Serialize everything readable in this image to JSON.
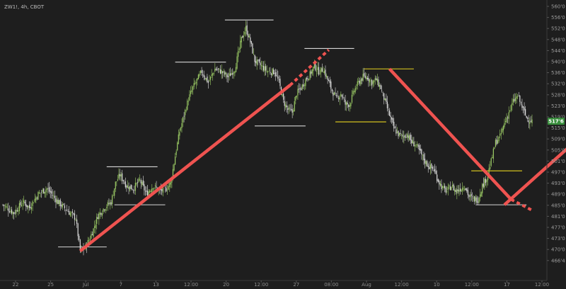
{
  "header": {
    "title": "ZW1!, 4h, CBOT"
  },
  "colors": {
    "background": "#1e1e1e",
    "candle_up": "#9ccc65",
    "candle_down": "#e0e0e0",
    "trendline": "#ef5350",
    "level_white": "#d6d6d6",
    "level_yellow": "#e6d21e",
    "price_tag": "#388e3c"
  },
  "chart_data": {
    "type": "candlestick",
    "title": "ZW1!, 4h, CBOT",
    "y_ticks": [
      "560'0",
      "556'0",
      "552'0",
      "548'0",
      "544'0",
      "540'0",
      "536'0",
      "532'0",
      "528'0",
      "523'0",
      "519'0",
      "515'0",
      "509'0",
      "505'0",
      "501'0",
      "497'0",
      "493'0",
      "489'0",
      "485'0",
      "481'0",
      "477'0",
      "473'0",
      "470'0",
      "466'4"
    ],
    "x_ticks": [
      "22",
      "25",
      "Jul",
      "7",
      "13",
      "12:00",
      "20",
      "12:00",
      "27",
      "08:00",
      "Aug",
      "12:00",
      "10",
      "12:00",
      "17",
      "12:00"
    ],
    "current_price_label": "517'6",
    "current_price": 517.75,
    "ylim": [
      466.5,
      560
    ],
    "waypoints": [
      [
        0,
        487
      ],
      [
        10,
        484
      ],
      [
        18,
        488
      ],
      [
        24,
        486
      ],
      [
        32,
        491
      ],
      [
        40,
        493
      ],
      [
        50,
        488
      ],
      [
        58,
        485
      ],
      [
        66,
        482
      ],
      [
        70,
        470
      ],
      [
        74,
        471
      ],
      [
        78,
        474
      ],
      [
        82,
        478
      ],
      [
        86,
        483
      ],
      [
        92,
        486
      ],
      [
        98,
        488
      ],
      [
        102,
        495
      ],
      [
        106,
        498
      ],
      [
        112,
        494
      ],
      [
        118,
        493
      ],
      [
        124,
        496
      ],
      [
        130,
        491
      ],
      [
        136,
        494
      ],
      [
        142,
        492
      ],
      [
        148,
        493
      ],
      [
        152,
        495
      ],
      [
        156,
        505
      ],
      [
        160,
        514
      ],
      [
        164,
        520
      ],
      [
        168,
        526
      ],
      [
        172,
        530
      ],
      [
        176,
        533
      ],
      [
        180,
        536
      ],
      [
        186,
        532
      ],
      [
        192,
        537
      ],
      [
        198,
        536
      ],
      [
        204,
        534
      ],
      [
        210,
        537
      ],
      [
        216,
        548
      ],
      [
        220,
        552
      ],
      [
        224,
        547
      ],
      [
        228,
        540
      ],
      [
        234,
        538
      ],
      [
        240,
        536
      ],
      [
        246,
        536
      ],
      [
        250,
        532
      ],
      [
        254,
        525
      ],
      [
        258,
        522
      ],
      [
        262,
        521
      ],
      [
        266,
        528
      ],
      [
        270,
        530
      ],
      [
        274,
        533
      ],
      [
        278,
        535
      ],
      [
        282,
        538
      ],
      [
        286,
        536
      ],
      [
        290,
        537
      ],
      [
        294,
        533
      ],
      [
        298,
        529
      ],
      [
        302,
        526
      ],
      [
        306,
        528
      ],
      [
        310,
        524
      ],
      [
        314,
        524
      ],
      [
        318,
        529
      ],
      [
        322,
        532
      ],
      [
        326,
        534
      ],
      [
        330,
        534
      ],
      [
        334,
        532
      ],
      [
        338,
        533
      ],
      [
        342,
        530
      ],
      [
        346,
        525
      ],
      [
        350,
        520
      ],
      [
        354,
        515
      ],
      [
        358,
        513
      ],
      [
        362,
        512
      ],
      [
        366,
        513
      ],
      [
        370,
        510
      ],
      [
        374,
        509
      ],
      [
        378,
        506
      ],
      [
        382,
        503
      ],
      [
        386,
        501
      ],
      [
        390,
        500
      ],
      [
        394,
        496
      ],
      [
        398,
        493
      ],
      [
        402,
        492
      ],
      [
        406,
        494
      ],
      [
        410,
        492
      ],
      [
        414,
        493
      ],
      [
        418,
        494
      ],
      [
        422,
        490
      ],
      [
        426,
        489
      ],
      [
        430,
        489
      ],
      [
        434,
        494
      ],
      [
        438,
        497
      ],
      [
        442,
        503
      ],
      [
        446,
        510
      ],
      [
        450,
        512
      ],
      [
        454,
        517
      ],
      [
        458,
        521
      ],
      [
        462,
        525
      ],
      [
        466,
        527
      ],
      [
        470,
        523
      ],
      [
        474,
        519
      ],
      [
        478,
        518
      ]
    ],
    "lines": [
      {
        "kind": "trend",
        "x1": 70,
        "y1": 470,
        "x2": 260,
        "y2": 531,
        "dashed": false
      },
      {
        "kind": "trend",
        "x1": 260,
        "y1": 531,
        "x2": 295,
        "y2": 544,
        "dashed": true
      },
      {
        "kind": "trend",
        "x1": 350,
        "y1": 537,
        "x2": 460,
        "y2": 489,
        "dashed": false
      },
      {
        "kind": "trend",
        "x1": 460,
        "y1": 489,
        "x2": 479,
        "y2": 485,
        "dashed": true
      },
      {
        "kind": "trend",
        "x1": 454,
        "y1": 487,
        "x2": 520,
        "y2": 511,
        "dashed": false
      }
    ],
    "levels": [
      {
        "color": "white",
        "x1": 50,
        "x2": 94,
        "y": 471.5
      },
      {
        "color": "white",
        "x1": 101,
        "x2": 147,
        "y": 487
      },
      {
        "color": "white",
        "x1": 94,
        "x2": 140,
        "y": 501
      },
      {
        "color": "white",
        "x1": 156,
        "x2": 202,
        "y": 539.5
      },
      {
        "color": "white",
        "x1": 201,
        "x2": 245,
        "y": 555
      },
      {
        "color": "white",
        "x1": 228,
        "x2": 274,
        "y": 516
      },
      {
        "color": "white",
        "x1": 273,
        "x2": 318,
        "y": 544.5
      },
      {
        "color": "yellow",
        "x1": 301,
        "x2": 347,
        "y": 517.5
      },
      {
        "color": "yellow",
        "x1": 327,
        "x2": 372,
        "y": 537
      },
      {
        "color": "yellow",
        "x1": 424,
        "x2": 470,
        "y": 499.5
      },
      {
        "color": "white",
        "x1": 428,
        "x2": 474,
        "y": 487
      }
    ]
  }
}
